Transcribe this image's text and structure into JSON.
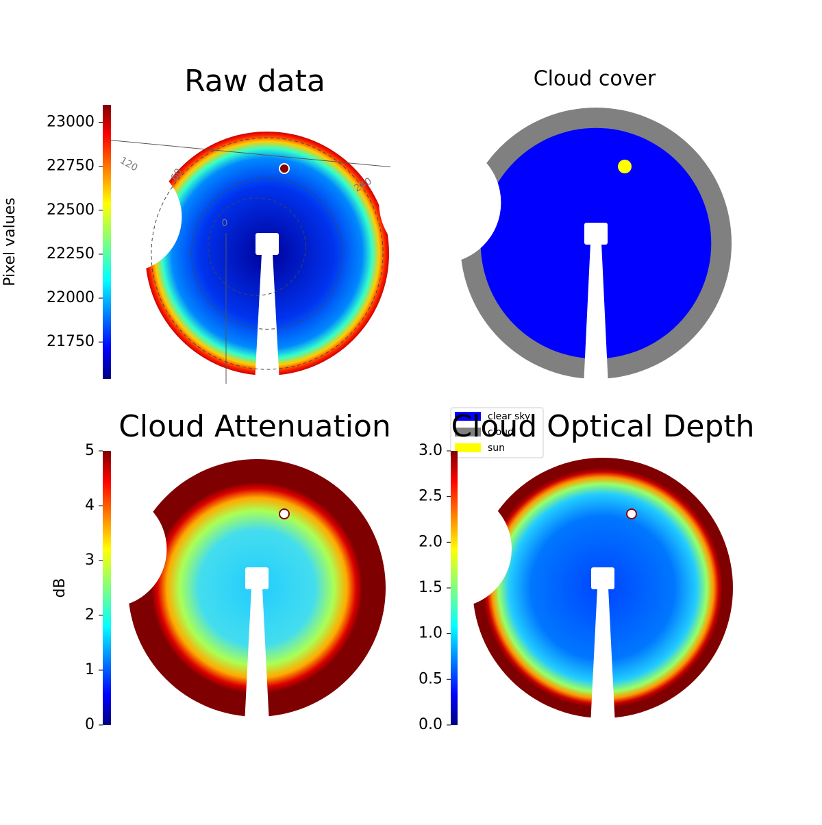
{
  "chart_data": [
    {
      "type": "heatmap",
      "title": "Raw data",
      "colormap": "jet",
      "colorbar_label": "Pixel values",
      "ylim": [
        21540,
        23100
      ],
      "yticks": [
        21750,
        22000,
        22250,
        22500,
        22750,
        23000
      ],
      "annotations": [
        "120",
        "60",
        "240",
        "0"
      ]
    },
    {
      "type": "classes",
      "title": "Cloud cover",
      "legend": [
        {
          "name": "clear sky",
          "color": "#0000ff"
        },
        {
          "name": "cloud",
          "color": "#808080"
        },
        {
          "name": "sun",
          "color": "#ffff00"
        }
      ]
    },
    {
      "type": "heatmap",
      "title": "Cloud Attenuation",
      "colormap": "jet",
      "colorbar_label": "dB",
      "ylim": [
        0,
        5
      ],
      "yticks": [
        0,
        1,
        2,
        3,
        4,
        5
      ]
    },
    {
      "type": "heatmap",
      "title": "Cloud Optical Depth",
      "colormap": "jet",
      "ylim": [
        0,
        3
      ],
      "yticks": [
        {
          "value": 0,
          "label": "0.0"
        },
        0.5,
        {
          "value": 1,
          "label": "1.0"
        },
        1.5,
        {
          "value": 2,
          "label": "2.0"
        },
        2.5,
        {
          "value": 3,
          "label": "3.0"
        }
      ]
    }
  ]
}
